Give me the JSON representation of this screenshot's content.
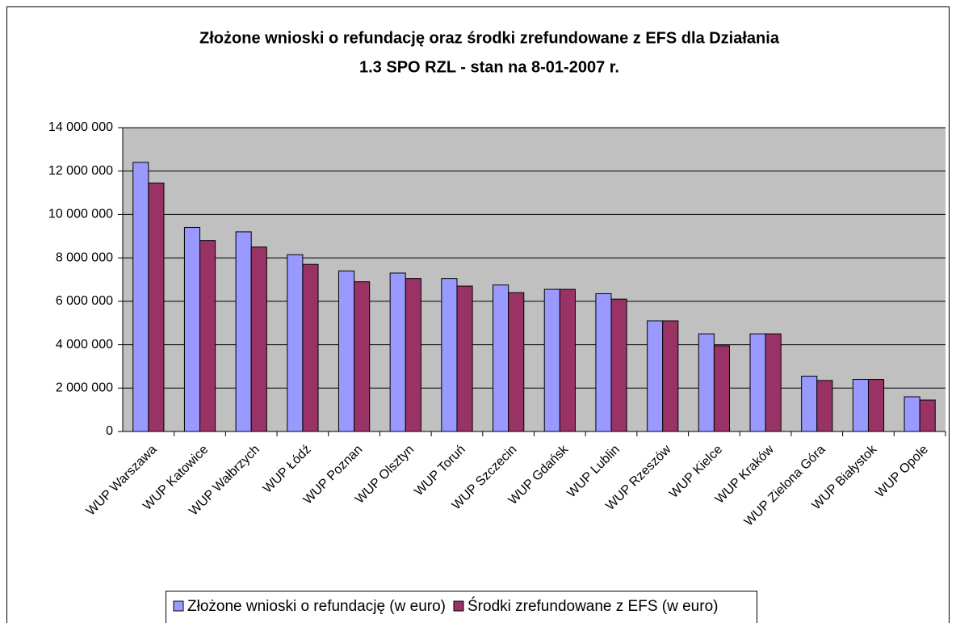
{
  "chart_data": {
    "type": "bar",
    "title": [
      "Złożone wnioski o refundację oraz środki zrefundowane z EFS dla Działania",
      "1.3 SPO RZL - stan na 8-01-2007 r."
    ],
    "categories": [
      "WUP Warszawa",
      "WUP Katowice",
      "WUP Wałbrzych",
      "WUP Łódź",
      "WUP Poznan",
      "WUP Olsztyn",
      "WUP Toruń",
      "WUP Szczecin",
      "WUP Gdańsk",
      "WUP Lublin",
      "WUP Rzeszów",
      "WUP Kielce",
      "WUP Kraków",
      "WUP Zielona Góra",
      "WUP Białystok",
      "WUP Opole"
    ],
    "series": [
      {
        "name": "Złożone wnioski o refundację (w euro)",
        "color": "#9999ff",
        "values": [
          12400000,
          9400000,
          9200000,
          8150000,
          7400000,
          7300000,
          7050000,
          6750000,
          6550000,
          6350000,
          5100000,
          4500000,
          4500000,
          2550000,
          2400000,
          1600000
        ]
      },
      {
        "name": "Środki zrefundowane z EFS (w euro)",
        "color": "#993366",
        "values": [
          11450000,
          8800000,
          8500000,
          7700000,
          6900000,
          7050000,
          6700000,
          6400000,
          6550000,
          6100000,
          5100000,
          3950000,
          4500000,
          2350000,
          2400000,
          1450000
        ]
      }
    ],
    "ylim": [
      0,
      14000000
    ],
    "yticks": [
      0,
      {
        "value": 2000000,
        "label": "2 000 000"
      },
      {
        "value": 4000000,
        "label": "4 000 000"
      },
      {
        "value": 6000000,
        "label": "6 000 000"
      },
      {
        "value": 8000000,
        "label": "8 000 000"
      },
      {
        "value": 10000000,
        "label": "10 000 000"
      },
      {
        "value": 12000000,
        "label": "12 000 000"
      },
      {
        "value": 14000000,
        "label": "14 000 000"
      }
    ],
    "grid": true,
    "legend": "bottom"
  }
}
